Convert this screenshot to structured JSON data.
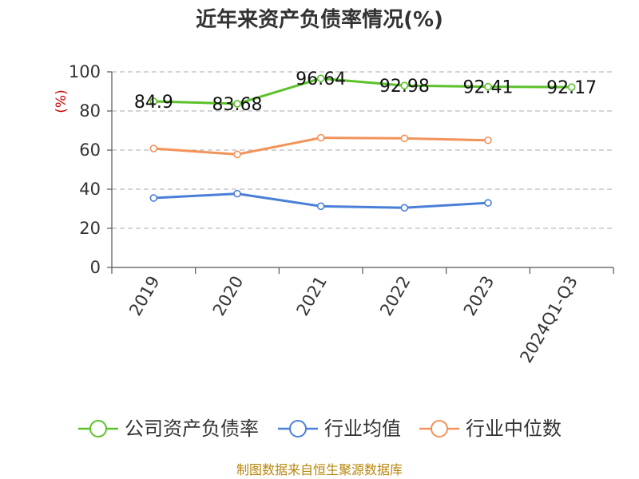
{
  "chart_data": {
    "type": "line",
    "title": "近年来资产负债率情况(%)",
    "ylabel": "(%)",
    "xlabel": "",
    "ylim": [
      0,
      100
    ],
    "yticks": [
      0,
      20,
      40,
      60,
      80,
      100
    ],
    "grid": true,
    "legend_position": "bottom",
    "categories": [
      "2019",
      "2020",
      "2021",
      "2022",
      "2023",
      "2024Q1-Q3"
    ],
    "series": [
      {
        "name": "公司资产负债率",
        "color": "#5cc12a",
        "values": [
          84.9,
          83.68,
          96.64,
          92.98,
          92.41,
          92.17
        ],
        "labels": [
          "84.9",
          "83.68",
          "96.64",
          "92.98",
          "92.41",
          "92.17"
        ]
      },
      {
        "name": "行业均值",
        "color": "#4a7fd8",
        "values": [
          35.5,
          37.7,
          31.3,
          30.5,
          33.0,
          null
        ]
      },
      {
        "name": "行业中位数",
        "color": "#f2935a",
        "values": [
          60.8,
          57.8,
          66.3,
          66.0,
          65.0,
          null
        ]
      }
    ]
  },
  "source": "制图数据来自恒生聚源数据库"
}
